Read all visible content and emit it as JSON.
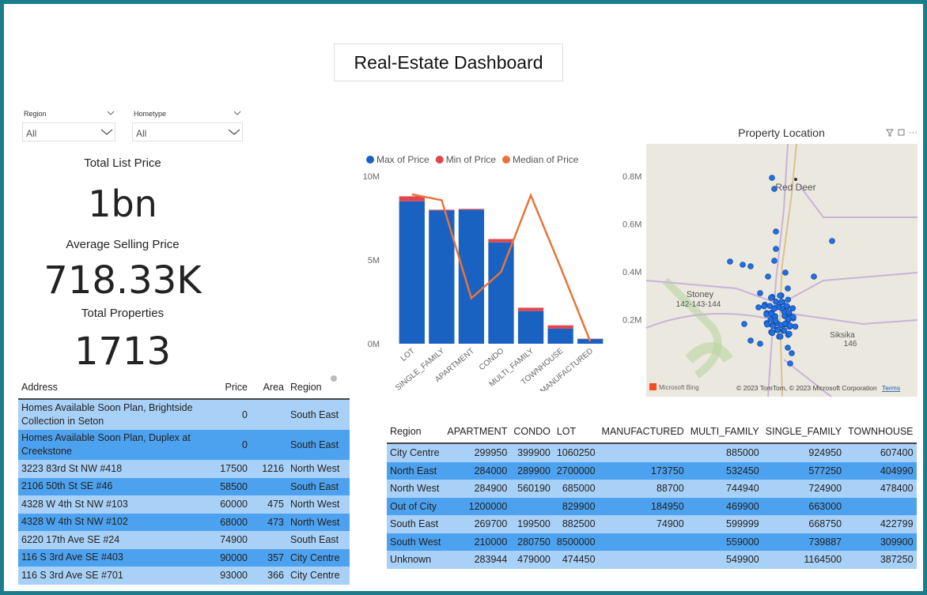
{
  "header": {
    "title": "Real-Estate Dashboard"
  },
  "filters": [
    {
      "label": "Region",
      "value": "All"
    },
    {
      "label": "Hometype",
      "value": "All"
    }
  ],
  "cards": [
    {
      "label": "Total List Price",
      "value": "1bn"
    },
    {
      "label": "Average Selling Price",
      "value": "718.33K"
    },
    {
      "label": "Total Properties",
      "value": 1713
    }
  ],
  "address_table": {
    "columns": [
      "Address",
      "Price",
      "Area",
      "Region"
    ],
    "rows": [
      [
        "Homes Available Soon Plan, Brightside Collection in Seton",
        0,
        null,
        "South East"
      ],
      [
        "Homes Available Soon Plan, Duplex at Creekstone",
        0,
        null,
        "South East"
      ],
      [
        "3223 83rd St NW #418",
        17500,
        1216,
        "North West"
      ],
      [
        "2106 50th St SE #46",
        58500,
        null,
        "South East"
      ],
      [
        "4328 W 4th St NW #103",
        60000,
        475,
        "North West"
      ],
      [
        "4328 W 4th St NW #102",
        68000,
        473,
        "North West"
      ],
      [
        "6220 17th Ave SE #24",
        74900,
        null,
        "South East"
      ],
      [
        "116 S 3rd Ave SE #403",
        90000,
        357,
        "City Centre"
      ],
      [
        "116 S 3rd Ave SE #701",
        93000,
        366,
        "City Centre"
      ]
    ]
  },
  "chart_data": {
    "type": "bar",
    "stacked": true,
    "legend": "top-left",
    "categories": [
      "LOT",
      "SINGLE_FAMILY",
      "APARTMENT",
      "CONDO",
      "MULTI_FAMILY",
      "TOWNHOUSE",
      "MANUFACTURED"
    ],
    "series": [
      {
        "name": "Max of Price",
        "color": "#1a62c2",
        "values": [
          8500000,
          7950000,
          8000000,
          6050000,
          1950000,
          900000,
          280000
        ]
      },
      {
        "name": "Min of Price",
        "color": "#e0474c",
        "values": [
          300000,
          50000,
          50000,
          200000,
          200000,
          200000,
          20000
        ]
      },
      {
        "name": "Median of Price",
        "color": "#e8743b",
        "type": "line",
        "axis": "y2",
        "values": [
          724000,
          700000,
          290000,
          400000,
          720000,
          420000,
          110000
        ]
      }
    ],
    "ylim": [
      0,
      10000000
    ],
    "yticks": [
      {
        "value": 0,
        "label": "0M"
      },
      {
        "value": 5000000,
        "label": "5M"
      },
      {
        "value": 10000000,
        "label": "10M"
      }
    ],
    "y2lim": [
      100000,
      800000
    ],
    "y2ticks": [
      {
        "value": 200000,
        "label": "0.2M"
      },
      {
        "value": 400000,
        "label": "0.4M"
      },
      {
        "value": 600000,
        "label": "0.6M"
      },
      {
        "value": 800000,
        "label": "0.8M"
      }
    ]
  },
  "map": {
    "title": "Property Location",
    "places": [
      "Red Deer",
      "Stoney",
      "142-143-144",
      "Siksika",
      "146"
    ],
    "logo": "Microsoft Bing",
    "attribution": "© 2023 TomTom, © 2023 Microsoft Corporation",
    "terms": "Terms"
  },
  "matrix": {
    "columns": [
      "Region",
      "APARTMENT",
      "CONDO",
      "LOT",
      "MANUFACTURED",
      "MULTI_FAMILY",
      "SINGLE_FAMILY",
      "TOWNHOUSE"
    ],
    "rows": [
      [
        "City Centre",
        299950,
        399900,
        1060250,
        null,
        885000,
        924950,
        607400
      ],
      [
        "North East",
        284000,
        289900,
        2700000,
        173750,
        532450,
        577250,
        404990
      ],
      [
        "North West",
        284900,
        560190,
        685000,
        88700,
        744940,
        724900,
        478400
      ],
      [
        "Out of City",
        1200000,
        null,
        829900,
        184950,
        469900,
        663000,
        null
      ],
      [
        "South East",
        269700,
        199500,
        882500,
        74900,
        599999,
        668750,
        422799
      ],
      [
        "South West",
        210000,
        280750,
        8500000,
        null,
        559000,
        739887,
        309900
      ],
      [
        "Unknown",
        283944,
        479000,
        474450,
        null,
        549900,
        1164500,
        387250
      ]
    ]
  }
}
